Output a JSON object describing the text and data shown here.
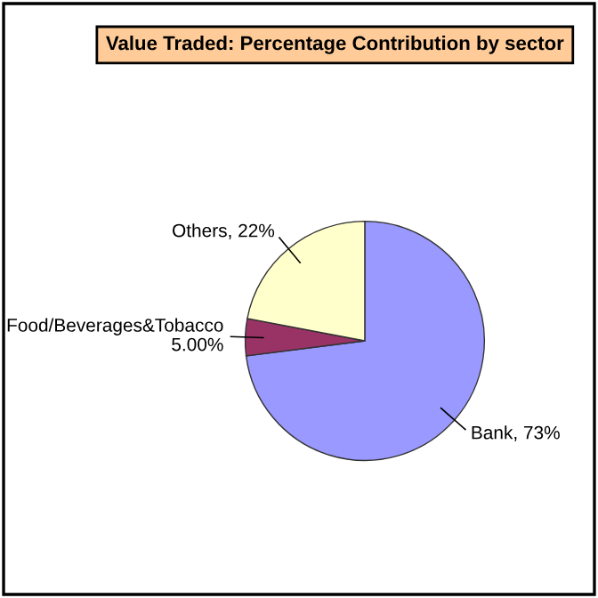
{
  "chart_data": {
    "type": "pie",
    "title": "Value Traded: Percentage Contribution by sector",
    "categories": [
      "Bank",
      "Food/Beverages&Tobacco",
      "Others"
    ],
    "values": [
      73,
      5.0,
      22
    ],
    "colors": [
      "#9999ff",
      "#993366",
      "#ffffcc"
    ],
    "value_labels": [
      "73%",
      "5.00%",
      "22%"
    ]
  }
}
